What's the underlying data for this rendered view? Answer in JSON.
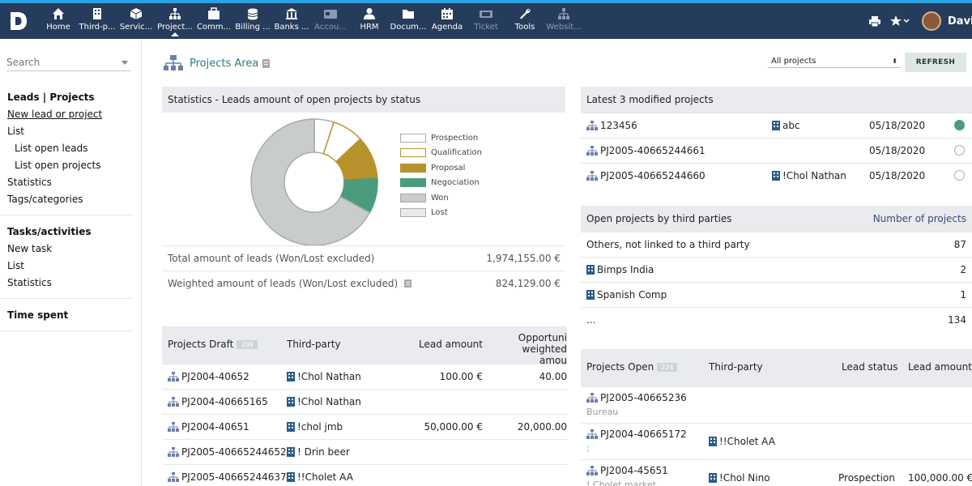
{
  "topbar": {
    "menu": [
      {
        "label": "Home",
        "icon": "home-icon"
      },
      {
        "label": "Third-p...",
        "icon": "building-icon"
      },
      {
        "label": "Servic...",
        "icon": "cube-icon"
      },
      {
        "label": "Project...",
        "icon": "sitemap-icon",
        "active": true
      },
      {
        "label": "Comm...",
        "icon": "briefcase-icon"
      },
      {
        "label": "Billing ...",
        "icon": "coins-icon"
      },
      {
        "label": "Banks ...",
        "icon": "bank-icon"
      },
      {
        "label": "Accou...",
        "icon": "card-icon",
        "dim": true
      },
      {
        "label": "HRM",
        "icon": "user-icon"
      },
      {
        "label": "Docum...",
        "icon": "folder-icon"
      },
      {
        "label": "Agenda",
        "icon": "calendar-icon"
      },
      {
        "label": "Ticket",
        "icon": "ticket-icon",
        "dim": true
      },
      {
        "label": "Tools",
        "icon": "wrench-icon"
      },
      {
        "label": "Websit...",
        "icon": "sitemap-icon",
        "dim": true
      }
    ],
    "username": "David"
  },
  "sidebar": {
    "search_placeholder": "Search",
    "groups": [
      {
        "head": "Leads | Projects",
        "items": [
          {
            "label": "New lead or project",
            "sub": false
          },
          {
            "label": "List",
            "sub": false
          },
          {
            "label": "List open leads",
            "sub": true
          },
          {
            "label": "List open projects",
            "sub": true
          },
          {
            "label": "Statistics",
            "sub": false
          },
          {
            "label": "Tags/categories",
            "sub": false
          }
        ]
      },
      {
        "head": "Tasks/activities",
        "items": [
          {
            "label": "New task",
            "sub": false
          },
          {
            "label": "List",
            "sub": false
          },
          {
            "label": "Statistics",
            "sub": false
          }
        ]
      },
      {
        "head": "Time spent",
        "items": []
      }
    ]
  },
  "main": {
    "title": "Projects Area",
    "filter_value": "All projects",
    "refresh_label": "REFRESH"
  },
  "stats": {
    "title": "Statistics - Leads amount of open projects by status",
    "total_label": "Total amount of leads (Won/Lost excluded)",
    "total_value": "1,974,155.00 €",
    "weighted_label": "Weighted amount of leads (Won/Lost excluded)",
    "weighted_value": "824,129.00 €"
  },
  "chart_data": {
    "type": "pie",
    "categories": [
      "Prospection",
      "Qualification",
      "Proposal",
      "Negociation",
      "Won",
      "Lost"
    ],
    "values": [
      5,
      8,
      11,
      9,
      67,
      0
    ],
    "colors": [
      "#ffffff",
      "#ffffff",
      "#b8922a",
      "#4a9c7c",
      "#c8cccb",
      "#e6ebe8"
    ],
    "borders": [
      "#aaaaaa",
      "#b8922a",
      "#b8922a",
      "#4a9c7c",
      "#aaaaaa",
      "#aaaaaa"
    ],
    "legend": "right"
  },
  "draft": {
    "title": "Projects Draft",
    "count": "209",
    "col_third": "Third-party",
    "col_amount": "Lead amount",
    "col_opp1": "Opportuni",
    "col_opp2": "weighted amou",
    "rows": [
      {
        "ref": "PJ2004-40652",
        "third": "!Chol Nathan",
        "amount": "100.00 €",
        "opp": "40.00"
      },
      {
        "ref": "PJ2004-40665165",
        "third": "!Chol Nathan",
        "amount": "",
        "opp": ""
      },
      {
        "ref": "PJ2004-40651",
        "third": "!chol jmb",
        "amount": "50,000.00 €",
        "opp": "20,000.00"
      },
      {
        "ref": "PJ2005-40665244652",
        "third": "! Drin beer",
        "amount": "",
        "opp": ""
      },
      {
        "ref": "PJ2005-40665244637",
        "third": "!!Cholet AA",
        "amount": "",
        "opp": ""
      }
    ]
  },
  "latest": {
    "title": "Latest 3 modified projects",
    "rows": [
      {
        "ref": "123456",
        "third": "abc",
        "date": "05/18/2020",
        "status": "open"
      },
      {
        "ref": "PJ2005-40665244661",
        "third": "",
        "date": "05/18/2020",
        "status": "draft"
      },
      {
        "ref": "PJ2005-40665244660",
        "third": "!Chol Nathan",
        "date": "05/18/2020",
        "status": "draft"
      }
    ]
  },
  "third": {
    "title": "Open projects by third parties",
    "col_count": "Number of projects",
    "rows": [
      {
        "name": "Others, not linked to a third party",
        "count": "87",
        "icon": false
      },
      {
        "name": "Bimps India",
        "count": "2",
        "icon": true
      },
      {
        "name": "Spanish Comp",
        "count": "1",
        "icon": true
      },
      {
        "name": "...",
        "count": "134",
        "icon": false
      }
    ]
  },
  "open": {
    "title": "Projects Open",
    "count": "224",
    "col_third": "Third-party",
    "col_status": "Lead status",
    "col_amount": "Lead amount",
    "rows": [
      {
        "ref": "PJ2005-40665236",
        "sub": "Bureau",
        "third": "",
        "status": "",
        "amount": ""
      },
      {
        "ref": "PJ2004-40665172",
        "sub": ";",
        "third": "!!Cholet AA",
        "status": "",
        "amount": ""
      },
      {
        "ref": "PJ2004-45651",
        "sub": "! Cholet market",
        "third": "!Chol Nino",
        "status": "Prospection",
        "amount": "100,000.00 €"
      }
    ]
  }
}
